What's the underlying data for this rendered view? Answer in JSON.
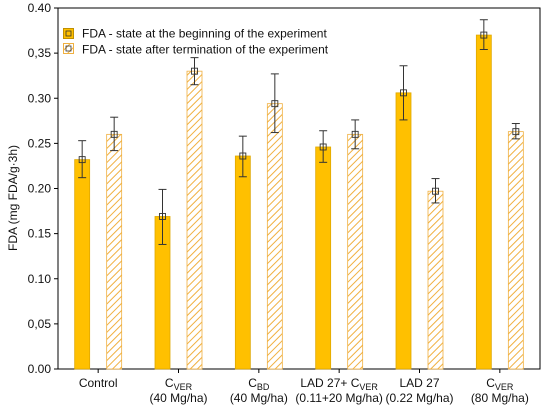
{
  "chart_data": {
    "type": "bar",
    "ylabel": "FDA (mg FDA/g·3h)",
    "ylim": [
      0,
      0.4
    ],
    "grid": false,
    "legend_position": "top-left",
    "yticks": [
      "0.00",
      "0,05",
      "0.10",
      "0.15",
      "0.20",
      "0.25",
      "0.30",
      "0,35",
      "0.40"
    ],
    "categories": [
      {
        "line1_main": "Control",
        "line1_sub": "",
        "line1_tail": "",
        "line2": ""
      },
      {
        "line1_main": "C",
        "line1_sub": "VER",
        "line1_tail": "",
        "line2": "(40 Mg/ha)"
      },
      {
        "line1_main": "C",
        "line1_sub": "BD",
        "line1_tail": "",
        "line2": "(40 Mg/ha)"
      },
      {
        "line1_main": "LAD 27+ C",
        "line1_sub": "VER",
        "line1_tail": "",
        "line2": "(0.11+20 Mg/ha)"
      },
      {
        "line1_main": "LAD 27",
        "line1_sub": "",
        "line1_tail": "",
        "line2": "(0.22 Mg/ha)"
      },
      {
        "line1_main": "C",
        "line1_sub": "VER",
        "line1_tail": "",
        "line2": "(80 Mg/ha)"
      }
    ],
    "series": [
      {
        "name": "FDA - state at the beginning of the experiment",
        "color": "#FFC000",
        "style": "solid",
        "values": [
          0.232,
          0.169,
          0.236,
          0.246,
          0.306,
          0.37
        ],
        "error_low": [
          0.212,
          0.138,
          0.213,
          0.229,
          0.276,
          0.354
        ],
        "error_high": [
          0.253,
          0.199,
          0.258,
          0.264,
          0.336,
          0.387
        ]
      },
      {
        "name": "FDA - state after termination of the experiment",
        "color": "#F5C77A",
        "style": "hatched",
        "values": [
          0.26,
          0.33,
          0.294,
          0.26,
          0.197,
          0.263
        ],
        "error_low": [
          0.242,
          0.315,
          0.262,
          0.244,
          0.184,
          0.255
        ],
        "error_high": [
          0.279,
          0.345,
          0.327,
          0.276,
          0.211,
          0.272
        ]
      }
    ]
  }
}
